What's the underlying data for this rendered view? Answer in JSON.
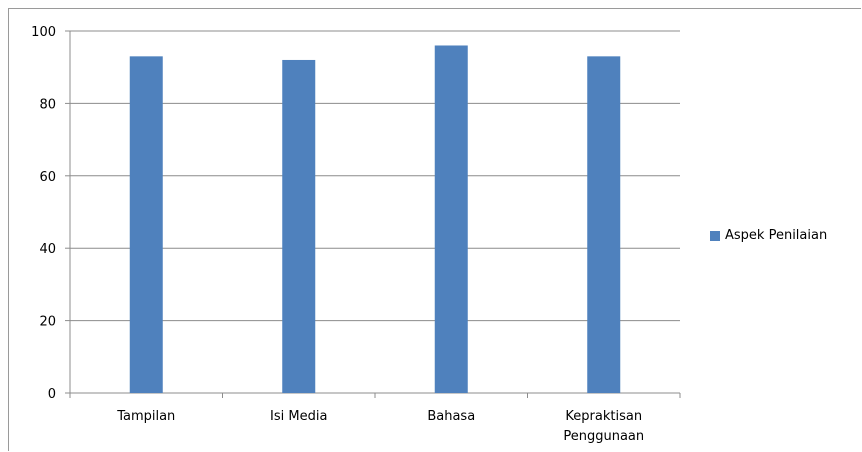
{
  "chart_data": {
    "type": "bar",
    "categories": [
      "Tampilan",
      "Isi Media",
      "Bahasa",
      "Kepraktisan Penggunaan"
    ],
    "category_lines": [
      [
        "Tampilan"
      ],
      [
        "Isi Media"
      ],
      [
        "Bahasa"
      ],
      [
        "Kepraktisan",
        "Penggunaan"
      ]
    ],
    "series": [
      {
        "name": "Aspek Penilaian",
        "values": [
          93,
          92,
          96,
          93
        ],
        "color": "#4f81bd"
      }
    ],
    "ylim": [
      0,
      100
    ],
    "yticks": [
      0,
      20,
      40,
      60,
      80,
      100
    ],
    "grid": true,
    "legend_position": "right"
  }
}
